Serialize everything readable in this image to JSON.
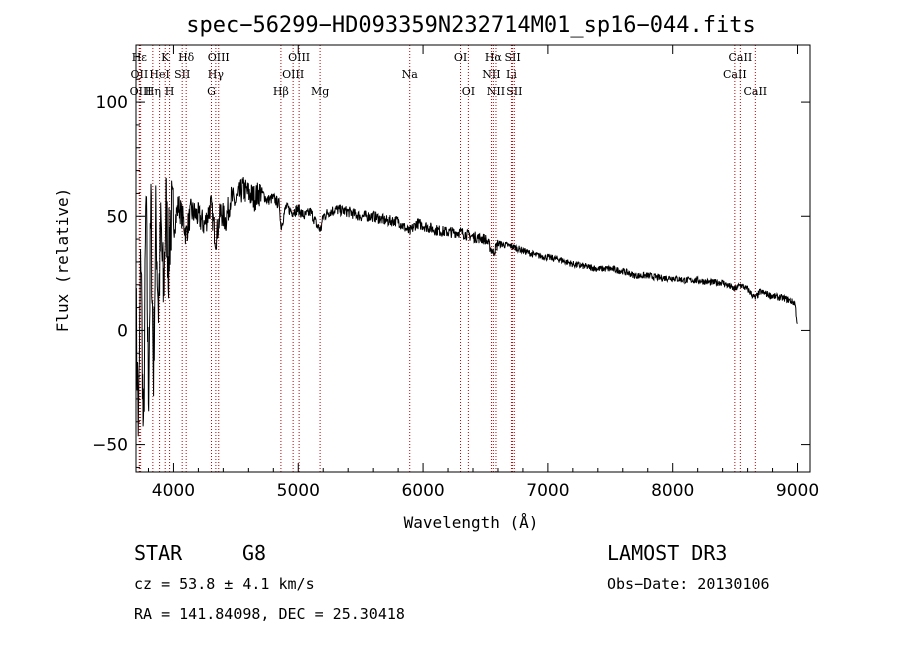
{
  "chart_data": {
    "type": "line",
    "title": "spec−56299−HD093359N232714M01_sp16−044.fits",
    "xlabel": "Wavelength (Å)",
    "ylabel": "Flux (relative)",
    "xlim": [
      3700,
      9100
    ],
    "ylim": [
      -62,
      125
    ],
    "xticks": [
      4000,
      5000,
      6000,
      7000,
      8000,
      9000
    ],
    "yticks": [
      -50,
      0,
      50,
      100
    ],
    "grid": false,
    "series": [
      {
        "name": "flux",
        "x": [
          3700,
          3720,
          3740,
          3760,
          3780,
          3800,
          3820,
          3840,
          3860,
          3880,
          3900,
          3920,
          3940,
          3960,
          3980,
          4000,
          4040,
          4080,
          4100,
          4140,
          4200,
          4250,
          4300,
          4340,
          4380,
          4420,
          4460,
          4500,
          4550,
          4600,
          4650,
          4700,
          4750,
          4800,
          4850,
          4861,
          4900,
          4950,
          5000,
          5050,
          5100,
          5150,
          5180,
          5200,
          5250,
          5300,
          5400,
          5500,
          5600,
          5700,
          5800,
          5890,
          5950,
          6000,
          6100,
          6200,
          6300,
          6400,
          6500,
          6563,
          6600,
          6700,
          6800,
          6900,
          7000,
          7100,
          7200,
          7300,
          7400,
          7500,
          7600,
          7700,
          7800,
          7900,
          8000,
          8100,
          8200,
          8300,
          8400,
          8498,
          8542,
          8600,
          8662,
          8700,
          8800,
          8900,
          8980,
          9000
        ],
        "y": [
          10,
          -45,
          40,
          -55,
          60,
          -30,
          55,
          -20,
          50,
          10,
          45,
          15,
          55,
          30,
          50,
          45,
          55,
          48,
          42,
          52,
          50,
          46,
          55,
          40,
          52,
          48,
          58,
          56,
          62,
          60,
          58,
          61,
          57,
          58,
          55,
          45,
          54,
          52,
          53,
          50,
          52,
          46,
          44,
          50,
          52,
          53,
          52,
          50,
          50,
          48,
          48,
          43,
          47,
          46,
          44,
          43,
          43,
          41,
          40,
          34,
          38,
          37,
          35,
          33,
          32,
          31,
          29,
          28,
          27,
          27,
          26,
          24,
          24,
          23,
          23,
          22,
          22,
          21,
          21,
          18,
          20,
          18,
          14,
          17,
          15,
          14,
          12,
          2
        ]
      }
    ],
    "lines": [
      {
        "label": "Hε",
        "wave": 3727,
        "row": 1
      },
      {
        "label": "OII",
        "wave": 3727,
        "row": 2
      },
      {
        "label": "OIII",
        "wave": 3737,
        "row": 3
      },
      {
        "label": "K",
        "wave": 3934,
        "row": 1
      },
      {
        "label": "HeI",
        "wave": 3889,
        "row": 2
      },
      {
        "label": "Hη",
        "wave": 3835,
        "row": 3
      },
      {
        "label": "SII",
        "wave": 4070,
        "row": 2
      },
      {
        "label": "H",
        "wave": 3969,
        "row": 3
      },
      {
        "label": "Hδ",
        "wave": 4102,
        "row": 1
      },
      {
        "label": "OIII",
        "wave": 4363,
        "row": 1
      },
      {
        "label": "Hγ",
        "wave": 4340,
        "row": 2
      },
      {
        "label": "G",
        "wave": 4305,
        "row": 3
      },
      {
        "label": "Hβ",
        "wave": 4861,
        "row": 3
      },
      {
        "label": "OIII",
        "wave": 5007,
        "row": 1
      },
      {
        "label": "OIII",
        "wave": 4959,
        "row": 2
      },
      {
        "label": "Mg",
        "wave": 5175,
        "row": 3
      },
      {
        "label": "Na",
        "wave": 5893,
        "row": 2
      },
      {
        "label": "OI",
        "wave": 6300,
        "row": 1
      },
      {
        "label": "OI",
        "wave": 6363,
        "row": 3
      },
      {
        "label": "Hα",
        "wave": 6563,
        "row": 1
      },
      {
        "label": "NII",
        "wave": 6548,
        "row": 2
      },
      {
        "label": "NII",
        "wave": 6584,
        "row": 3
      },
      {
        "label": "SII",
        "wave": 6717,
        "row": 1
      },
      {
        "label": "Li",
        "wave": 6708,
        "row": 2
      },
      {
        "label": "SII",
        "wave": 6731,
        "row": 3
      },
      {
        "label": "CaII",
        "wave": 8542,
        "row": 1
      },
      {
        "label": "CaII",
        "wave": 8498,
        "row": 2
      },
      {
        "label": "CaII",
        "wave": 8662,
        "row": 3
      }
    ]
  },
  "info": {
    "object_class": "STAR",
    "subclass": "G8",
    "survey": "LAMOST DR3",
    "cz": "cz = 53.8 ± 4.1 km/s",
    "obs_date": "Obs−Date: 20130106",
    "coords": "RA = 141.84098, DEC =  25.30418"
  }
}
